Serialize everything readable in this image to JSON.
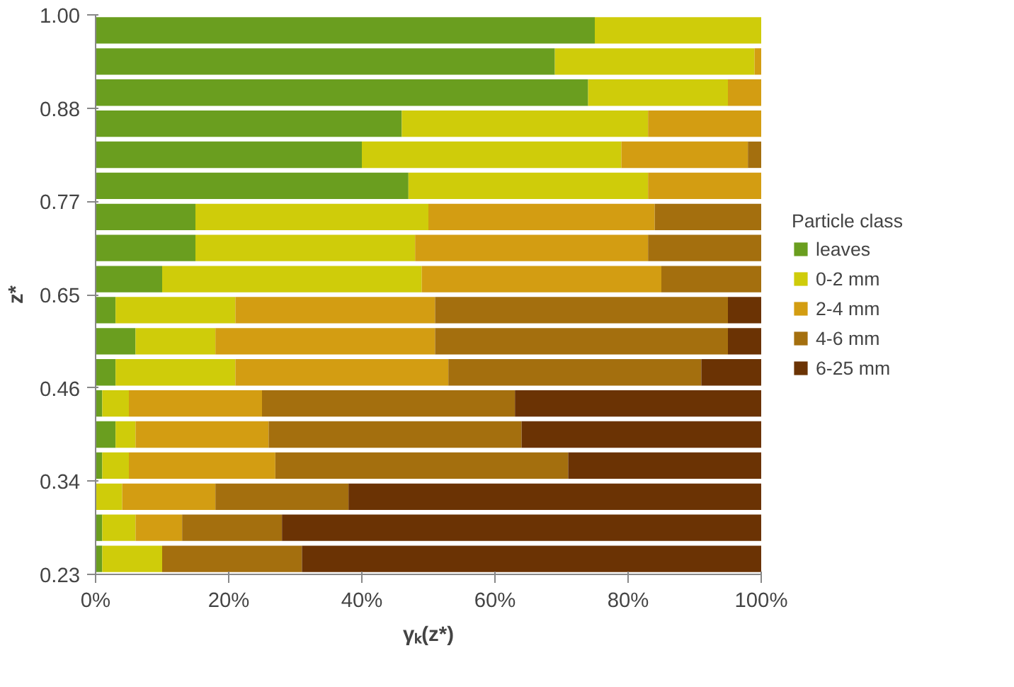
{
  "chart_data": {
    "type": "bar",
    "orientation": "horizontal",
    "stacked": true,
    "xlabel": "γₖ(z*)",
    "ylabel": "z*",
    "legend_title": "Particle class",
    "legend": "right",
    "categories": [
      null,
      null,
      null,
      null,
      null,
      null,
      null,
      null,
      null,
      null,
      null,
      null,
      null,
      null,
      null,
      null,
      null,
      null
    ],
    "annotations": [
      "1.00",
      "0.88",
      "0.77",
      "0.65",
      "0.46",
      "0.34",
      "0.23"
    ],
    "xlim": [
      0,
      100
    ],
    "xticks": [
      {
        "value": 0,
        "label": "0%"
      },
      {
        "value": 20,
        "label": "20%"
      },
      {
        "value": 40,
        "label": "40%"
      },
      {
        "value": 60,
        "label": "60%"
      },
      {
        "value": 80,
        "label": "80%"
      },
      {
        "value": 100,
        "label": "100%"
      }
    ],
    "series": [
      {
        "name": "leaves",
        "color": "#6a9e1f",
        "values": [
          75,
          69,
          74,
          46,
          40,
          47,
          15,
          15,
          10,
          3,
          6,
          3,
          1,
          3,
          1,
          0,
          1,
          1
        ]
      },
      {
        "name": "0-2 mm",
        "color": "#cfcc0a",
        "values": [
          25,
          30,
          21,
          37,
          39,
          36,
          35,
          33,
          39,
          18,
          12,
          18,
          4,
          3,
          4,
          4,
          5,
          9
        ]
      },
      {
        "name": "2-4 mm",
        "color": "#d39d12",
        "values": [
          0,
          1,
          5,
          17,
          19,
          17,
          34,
          35,
          36,
          30,
          33,
          32,
          20,
          20,
          22,
          14,
          7,
          0
        ]
      },
      {
        "name": "4-6 mm",
        "color": "#a46f0e",
        "values": [
          0,
          0,
          0,
          0,
          2,
          0,
          16,
          17,
          15,
          44,
          44,
          38,
          38,
          38,
          44,
          20,
          15,
          21
        ]
      },
      {
        "name": "6-25 mm",
        "color": "#6b3304",
        "values": [
          0,
          0,
          0,
          0,
          0,
          0,
          0,
          0,
          0,
          5,
          5,
          9,
          37,
          36,
          29,
          62,
          72,
          69
        ]
      }
    ]
  }
}
